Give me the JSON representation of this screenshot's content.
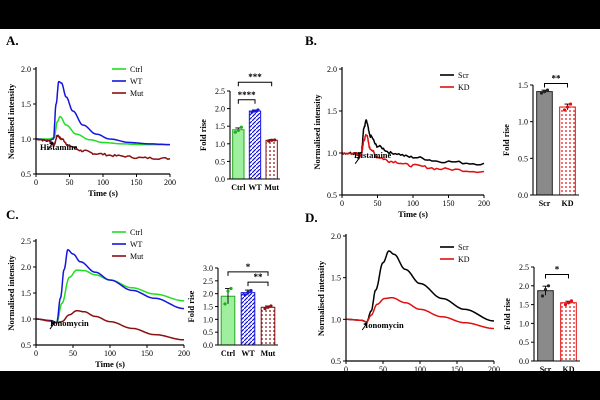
{
  "panels": [
    {
      "id": "A",
      "label": "A.",
      "line": {
        "type": "line",
        "xlabel": "Time (s)",
        "ylabel": "Normalised intensity",
        "xlim": [
          0,
          200
        ],
        "ylim": [
          0.5,
          2.0
        ],
        "xticks": [
          0,
          50,
          100,
          150,
          200
        ],
        "yticks": [
          0.5,
          1.0,
          1.5,
          2.0
        ],
        "annotation": "Histamine",
        "annotation_x": 27,
        "legend": [
          "Ctrl",
          "WT",
          "Mut"
        ],
        "series": [
          {
            "name": "Ctrl",
            "color": "#22dd22",
            "x": [
              0,
              20,
              27,
              32,
              36,
              45,
              60,
              80,
              100,
              130,
              160,
              200
            ],
            "y": [
              1.0,
              1.0,
              1.02,
              1.25,
              1.32,
              1.2,
              1.07,
              0.99,
              0.95,
              0.93,
              0.92,
              0.92
            ]
          },
          {
            "name": "WT",
            "color": "#1515dd",
            "x": [
              0,
              20,
              26,
              30,
              34,
              38,
              45,
              55,
              70,
              90,
              110,
              140,
              170,
              200
            ],
            "y": [
              1.0,
              0.98,
              1.0,
              1.5,
              1.82,
              1.8,
              1.6,
              1.4,
              1.2,
              1.07,
              1.0,
              0.95,
              0.93,
              0.92
            ]
          },
          {
            "name": "Mut",
            "color": "#8b1010",
            "x": [
              0,
              20,
              27,
              32,
              38,
              50,
              70,
              90,
              120,
              160,
              200
            ],
            "y": [
              1.0,
              0.97,
              0.92,
              1.05,
              1.0,
              0.9,
              0.83,
              0.79,
              0.76,
              0.73,
              0.72
            ],
            "noise": true
          }
        ]
      },
      "bar": {
        "type": "bar",
        "ylabel": "Fold rise",
        "ylim": [
          0,
          2.5
        ],
        "yticks": [
          0.0,
          0.5,
          1.0,
          1.5,
          2.0,
          2.5
        ],
        "categories": [
          "Ctrl",
          "WT",
          "Mut"
        ],
        "values": [
          1.4,
          1.93,
          1.1
        ],
        "errors": [
          0.05,
          0.03,
          0.02
        ],
        "fills": [
          "#9ef09e",
          "#5560ee",
          "#d99a9a"
        ],
        "strokes": [
          "#22aa22",
          "#1515dd",
          "#8b1010"
        ],
        "points": [
          [
            1.33,
            1.38,
            1.47
          ],
          [
            1.9,
            1.93,
            1.96
          ],
          [
            1.08,
            1.1,
            1.11
          ]
        ],
        "sig": [
          {
            "from": 0,
            "to": 1,
            "level": 2.25,
            "label": "****"
          },
          {
            "from": 0,
            "to": 2,
            "level": 2.75,
            "label": "***"
          }
        ]
      }
    },
    {
      "id": "B",
      "label": "B.",
      "line": {
        "type": "line",
        "xlabel": "Time (s)",
        "ylabel": "Normalised intensity",
        "xlim": [
          0,
          200
        ],
        "ylim": [
          0.5,
          2.0
        ],
        "xticks": [
          0,
          50,
          100,
          150,
          200
        ],
        "yticks": [
          0.5,
          1.0,
          1.5,
          2.0
        ],
        "annotation": "Histamine",
        "annotation_x": 27,
        "legend": [
          "Scr",
          "KD"
        ],
        "series": [
          {
            "name": "Scr",
            "color": "#000000",
            "x": [
              0,
              20,
              27,
              31,
              34,
              40,
              50,
              70,
              100,
              140,
              200
            ],
            "y": [
              1.0,
              1.0,
              0.99,
              1.3,
              1.38,
              1.2,
              1.08,
              1.0,
              0.95,
              0.9,
              0.87
            ],
            "noise": true
          },
          {
            "name": "KD",
            "color": "#e01010",
            "x": [
              0,
              20,
              27,
              31,
              34,
              40,
              50,
              70,
              100,
              140,
              200
            ],
            "y": [
              1.0,
              0.99,
              0.97,
              1.15,
              1.22,
              1.05,
              0.95,
              0.9,
              0.85,
              0.81,
              0.78
            ],
            "noise": true
          }
        ]
      },
      "bar": {
        "type": "bar",
        "ylabel": "Fold rise",
        "ylim": [
          0,
          1.5
        ],
        "yticks": [
          0.0,
          0.5,
          1.0,
          1.5
        ],
        "categories": [
          "Scr",
          "KD"
        ],
        "values": [
          1.41,
          1.2
        ],
        "errors": [
          0.02,
          0.04
        ],
        "fills": [
          "#8a8a8a",
          "#f3c0c0"
        ],
        "strokes": [
          "#222222",
          "#e01010"
        ],
        "points": [
          [
            1.39,
            1.41,
            1.43
          ],
          [
            1.16,
            1.2,
            1.24
          ]
        ],
        "sig": [
          {
            "from": 0,
            "to": 1,
            "level": 1.52,
            "label": "**"
          }
        ]
      }
    },
    {
      "id": "C",
      "label": "C.",
      "line": {
        "type": "line",
        "xlabel": "Time (s)",
        "ylabel": "Normalised intensity",
        "xlim": [
          0,
          200
        ],
        "ylim": [
          0.5,
          2.5
        ],
        "xticks": [
          0,
          50,
          100,
          150,
          200
        ],
        "yticks": [
          0.5,
          1.0,
          1.5,
          2.0,
          2.5
        ],
        "annotation": "Ionomycin",
        "annotation_x": 27,
        "legend": [
          "Ctrl",
          "WT",
          "Mut"
        ],
        "series": [
          {
            "name": "Ctrl",
            "color": "#22dd22",
            "x": [
              0,
              20,
              28,
              35,
              45,
              55,
              65,
              80,
              100,
              130,
              160,
              200
            ],
            "y": [
              1.0,
              0.97,
              0.93,
              1.3,
              1.8,
              1.94,
              1.93,
              1.85,
              1.75,
              1.6,
              1.48,
              1.35
            ]
          },
          {
            "name": "WT",
            "color": "#1515dd",
            "x": [
              0,
              20,
              28,
              33,
              38,
              43,
              50,
              60,
              80,
              100,
              130,
              160,
              200
            ],
            "y": [
              1.0,
              0.97,
              0.93,
              1.4,
              1.95,
              2.33,
              2.25,
              2.1,
              1.9,
              1.75,
              1.55,
              1.4,
              1.2
            ]
          },
          {
            "name": "Mut",
            "color": "#8b1010",
            "x": [
              0,
              20,
              28,
              35,
              45,
              55,
              65,
              80,
              100,
              130,
              160,
              200
            ],
            "y": [
              1.0,
              0.96,
              0.93,
              0.95,
              1.08,
              1.16,
              1.14,
              1.05,
              0.95,
              0.82,
              0.7,
              0.6
            ]
          }
        ]
      },
      "bar": {
        "type": "bar",
        "ylabel": "Fold rise",
        "ylim": [
          0,
          3.0
        ],
        "yticks": [
          0.0,
          0.5,
          1.0,
          1.5,
          2.0,
          2.5,
          3.0
        ],
        "categories": [
          "Ctrl",
          "WT",
          "Mut"
        ],
        "values": [
          1.9,
          2.04,
          1.47
        ],
        "errors": [
          0.3,
          0.1,
          0.05
        ],
        "fills": [
          "#9ef09e",
          "#5560ee",
          "#d99a9a"
        ],
        "strokes": [
          "#22aa22",
          "#1515dd",
          "#8b1010"
        ],
        "points": [
          [
            1.6,
            2.1,
            2.2
          ],
          [
            1.95,
            2.05,
            2.12
          ],
          [
            1.42,
            1.47,
            1.52
          ]
        ],
        "sig": [
          {
            "from": 1,
            "to": 2,
            "level": 2.45,
            "label": "**"
          },
          {
            "from": 0,
            "to": 2,
            "level": 2.85,
            "label": "*"
          }
        ]
      }
    },
    {
      "id": "D",
      "label": "D.",
      "line": {
        "type": "line",
        "xlabel": "Time (s)",
        "ylabel": "Normalised intensity",
        "xlim": [
          0,
          200
        ],
        "ylim": [
          0.5,
          2.0
        ],
        "xticks": [
          0,
          50,
          100,
          150,
          200
        ],
        "yticks": [
          0.5,
          1.0,
          1.5,
          2.0
        ],
        "annotation": "Ionomycin",
        "annotation_x": 30,
        "legend": [
          "Scr",
          "KD"
        ],
        "series": [
          {
            "name": "Scr",
            "color": "#000000",
            "x": [
              0,
              20,
              28,
              34,
              40,
              50,
              58,
              65,
              80,
              100,
              130,
              160,
              200
            ],
            "y": [
              1.0,
              0.99,
              0.97,
              1.1,
              1.35,
              1.68,
              1.82,
              1.78,
              1.6,
              1.43,
              1.25,
              1.12,
              0.98
            ]
          },
          {
            "name": "KD",
            "color": "#e01010",
            "x": [
              0,
              20,
              28,
              34,
              42,
              52,
              62,
              80,
              100,
              130,
              160,
              200
            ],
            "y": [
              1.0,
              0.99,
              0.97,
              1.05,
              1.18,
              1.25,
              1.26,
              1.2,
              1.12,
              1.03,
              0.96,
              0.89
            ]
          }
        ]
      },
      "bar": {
        "type": "bar",
        "ylabel": "Fold rise",
        "ylim": [
          0,
          2.5
        ],
        "yticks": [
          0.0,
          0.5,
          1.0,
          1.5,
          2.0,
          2.5
        ],
        "categories": [
          "Scr",
          "KD"
        ],
        "values": [
          1.87,
          1.55
        ],
        "errors": [
          0.12,
          0.04
        ],
        "fills": [
          "#8a8a8a",
          "#f3c0c0"
        ],
        "strokes": [
          "#222222",
          "#e01010"
        ],
        "points": [
          [
            1.73,
            1.9,
            2.0
          ],
          [
            1.5,
            1.55,
            1.6
          ]
        ],
        "sig": [
          {
            "from": 0,
            "to": 1,
            "level": 2.3,
            "label": "*"
          }
        ]
      }
    }
  ]
}
